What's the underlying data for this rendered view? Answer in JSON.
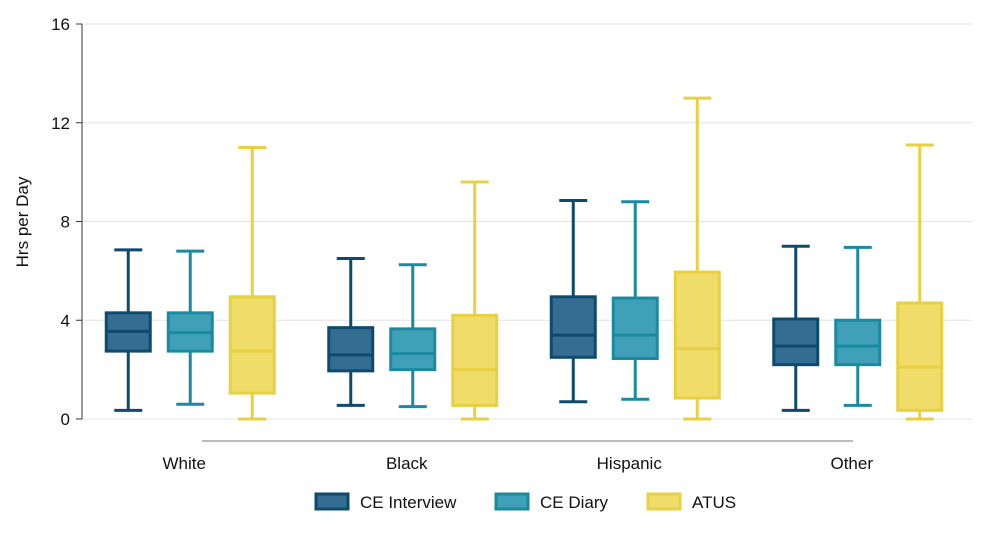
{
  "chart_data": {
    "type": "boxplot",
    "title": "",
    "xlabel": "",
    "ylabel": "Hrs per Day",
    "ylim": [
      0,
      16
    ],
    "yticks": [
      0,
      4,
      8,
      12,
      16
    ],
    "grid": true,
    "legend_position": "bottom-center",
    "categories": [
      "White",
      "Black",
      "Hispanic",
      "Other"
    ],
    "series": [
      {
        "name": "CE Interview",
        "color": "#0e4a6e",
        "fill": "#336e92",
        "boxes": [
          {
            "min": 0.35,
            "q1": 2.75,
            "median": 3.55,
            "q3": 4.3,
            "max": 6.85
          },
          {
            "min": 0.55,
            "q1": 1.95,
            "median": 2.6,
            "q3": 3.7,
            "max": 6.5
          },
          {
            "min": 0.7,
            "q1": 2.5,
            "median": 3.4,
            "q3": 4.95,
            "max": 8.85
          },
          {
            "min": 0.35,
            "q1": 2.2,
            "median": 2.95,
            "q3": 4.05,
            "max": 7.0
          }
        ]
      },
      {
        "name": "CE Diary",
        "color": "#1a8aa0",
        "fill": "#3fa0b8",
        "boxes": [
          {
            "min": 0.6,
            "q1": 2.75,
            "median": 3.5,
            "q3": 4.3,
            "max": 6.8
          },
          {
            "min": 0.5,
            "q1": 2.0,
            "median": 2.65,
            "q3": 3.65,
            "max": 6.25
          },
          {
            "min": 0.8,
            "q1": 2.45,
            "median": 3.4,
            "q3": 4.9,
            "max": 8.8
          },
          {
            "min": 0.55,
            "q1": 2.2,
            "median": 2.95,
            "q3": 4.0,
            "max": 6.95
          }
        ]
      },
      {
        "name": "ATUS",
        "color": "#e8d040",
        "fill": "#f0dc68",
        "boxes": [
          {
            "min": 0.0,
            "q1": 1.05,
            "median": 2.75,
            "q3": 4.95,
            "max": 11.0
          },
          {
            "min": 0.0,
            "q1": 0.55,
            "median": 2.0,
            "q3": 4.2,
            "max": 9.6
          },
          {
            "min": 0.0,
            "q1": 0.85,
            "median": 2.85,
            "q3": 5.95,
            "max": 13.0
          },
          {
            "min": 0.0,
            "q1": 0.35,
            "median": 2.1,
            "q3": 4.7,
            "max": 11.1
          }
        ]
      }
    ]
  }
}
